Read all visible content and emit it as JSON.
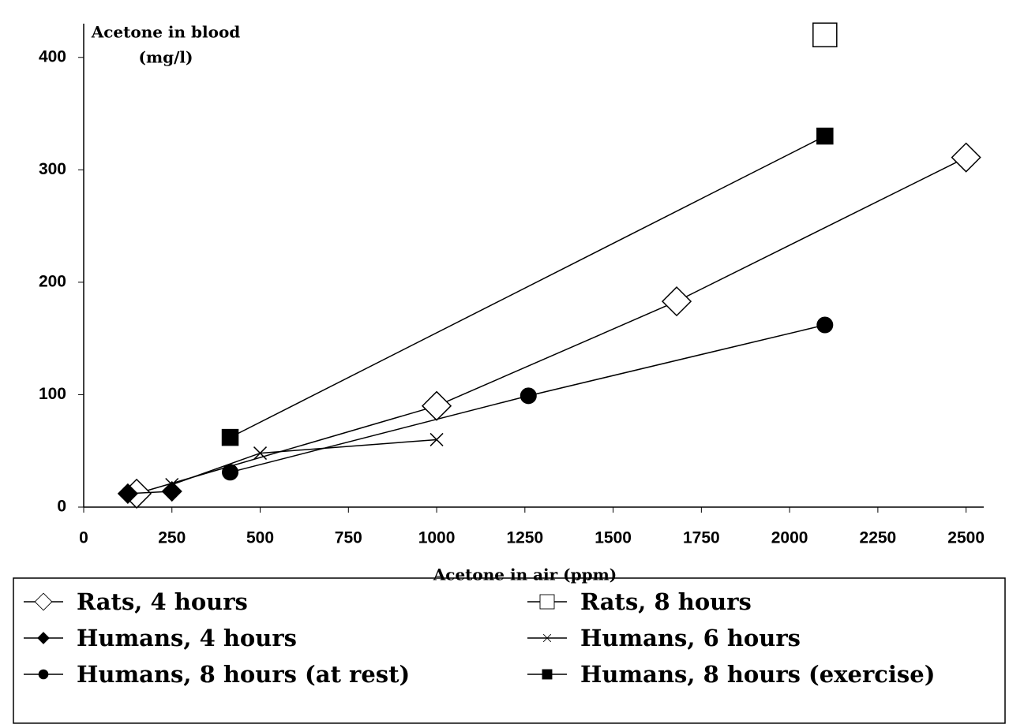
{
  "chart_data": {
    "type": "line",
    "x_label": "Acetone in air (ppm)",
    "y_label": [
      "Acetone in blood",
      "(mg/l)"
    ],
    "xlim": [
      0,
      2550
    ],
    "ylim": [
      0,
      430
    ],
    "xticks": [
      0,
      250,
      500,
      750,
      1000,
      1250,
      1500,
      1750,
      2000,
      2250,
      2500
    ],
    "yticks": [
      0,
      100,
      200,
      300,
      400
    ],
    "series": [
      {
        "name": "Rats, 4 hours",
        "color": "#000000",
        "marker": "diamond-open",
        "x": [
          150,
          1000,
          1680,
          2500
        ],
        "values": [
          12,
          90,
          183,
          311
        ]
      },
      {
        "name": "Rats, 8 hours",
        "color": "#000000",
        "marker": "square-open",
        "x": [
          2100
        ],
        "values": [
          420
        ]
      },
      {
        "name": "Humans, 4 hours",
        "color": "#000000",
        "marker": "diamond",
        "x": [
          125,
          250
        ],
        "values": [
          12,
          14
        ]
      },
      {
        "name": "Humans, 6 hours",
        "color": "#000000",
        "marker": "cross",
        "x": [
          250,
          500,
          1000
        ],
        "values": [
          20,
          48,
          60
        ]
      },
      {
        "name": "Humans, 8 hours (at rest)",
        "color": "#000000",
        "marker": "circle",
        "x": [
          415,
          1260,
          2100
        ],
        "values": [
          31,
          99,
          162
        ]
      },
      {
        "name": "Humans, 8 hours (exercise)",
        "color": "#000000",
        "marker": "square",
        "x": [
          415,
          2100
        ],
        "values": [
          62,
          330
        ]
      }
    ]
  }
}
